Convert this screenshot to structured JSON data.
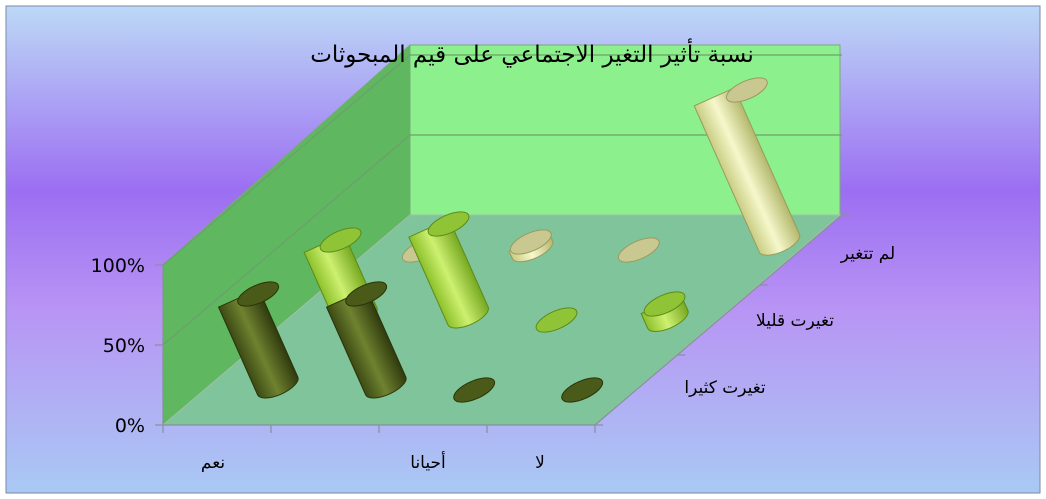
{
  "chart_data": {
    "type": "bar",
    "title": "نسبة تأثير التغير الاجتماعي على قيم المبحوثات",
    "x_tick_labels": [
      "نعم",
      "",
      "أحيانا",
      "لا"
    ],
    "series": [
      {
        "name": "تغيرت كثيرا",
        "values": [
          60,
          60,
          0,
          0
        ]
      },
      {
        "name": "تغيرت قليلا",
        "values": [
          50,
          60,
          0,
          10
        ]
      },
      {
        "name": "لم تتغير",
        "values": [
          0,
          5,
          0,
          100
        ]
      }
    ],
    "y_ticks": [
      "0%",
      "50%",
      "100%"
    ],
    "ylim": [
      0,
      100
    ],
    "colors": {
      "series": [
        "#5a6b22",
        "#a8d83c",
        "#e6e9a3"
      ],
      "background_top": "#b6d5f5",
      "background_mid": "#a070f0",
      "wall": "#5fb85f",
      "back_wall": "#8cf08c",
      "floor": "#7fc49a"
    }
  }
}
